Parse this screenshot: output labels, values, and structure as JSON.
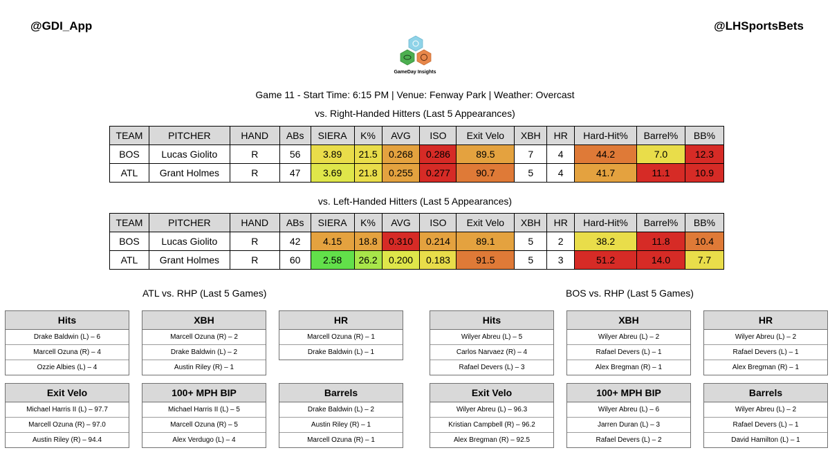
{
  "header": {
    "left_handle": "@GDI_App",
    "right_handle": "@LHSportsBets"
  },
  "logo": {
    "caption": "GameDay Insights",
    "colors": {
      "top": "#8fd3e8",
      "left": "#4caf50",
      "right": "#e8874a"
    }
  },
  "game_info": "Game 11 - Start Time: 6:15 PM | Venue: Fenway Park | Weather: Overcast",
  "columns": [
    "TEAM",
    "PITCHER",
    "HAND",
    "ABs",
    "SIERA",
    "K%",
    "AVG",
    "ISO",
    "Exit Velo",
    "XBH",
    "HR",
    "Hard-Hit%",
    "Barrel%",
    "BB%"
  ],
  "rhh": {
    "title": "vs. Right-Handed Hitters (Last 5 Appearances)",
    "rows": [
      {
        "cells": [
          "BOS",
          "Lucas Giolito",
          "R",
          "56",
          "3.89",
          "21.5",
          "0.268",
          "0.286",
          "89.5",
          "7",
          "4",
          "44.2",
          "7.0",
          "12.3"
        ],
        "colors": [
          "",
          "",
          "",
          "",
          "#e9dd4a",
          "#e9dd4a",
          "#e4a23f",
          "#d62b26",
          "#e4a23f",
          "",
          "",
          "#df7a37",
          "#e9dd4a",
          "#d62b26"
        ]
      },
      {
        "cells": [
          "ATL",
          "Grant Holmes",
          "R",
          "47",
          "3.69",
          "21.8",
          "0.255",
          "0.277",
          "90.7",
          "5",
          "4",
          "41.7",
          "11.1",
          "10.9"
        ],
        "colors": [
          "",
          "",
          "",
          "",
          "#dfe64a",
          "#e9dd4a",
          "#e4a23f",
          "#d62b26",
          "#df7a37",
          "",
          "",
          "#e4a23f",
          "#d62b26",
          "#d62b26"
        ]
      }
    ]
  },
  "lhh": {
    "title": "vs. Left-Handed Hitters (Last 5 Appearances)",
    "rows": [
      {
        "cells": [
          "BOS",
          "Lucas Giolito",
          "R",
          "42",
          "4.15",
          "18.8",
          "0.310",
          "0.214",
          "89.1",
          "5",
          "2",
          "38.2",
          "11.8",
          "10.4"
        ],
        "colors": [
          "",
          "",
          "",
          "",
          "#e4a23f",
          "#e4a23f",
          "#d62b26",
          "#e4a23f",
          "#e4a23f",
          "",
          "",
          "#e9dd4a",
          "#d62b26",
          "#df7a37"
        ]
      },
      {
        "cells": [
          "ATL",
          "Grant Holmes",
          "R",
          "60",
          "2.58",
          "26.2",
          "0.200",
          "0.183",
          "91.5",
          "5",
          "3",
          "51.2",
          "14.0",
          "7.7"
        ],
        "colors": [
          "",
          "",
          "",
          "",
          "#62e04a",
          "#a8e64a",
          "#dfe64a",
          "#e9dd4a",
          "#df7a37",
          "",
          "",
          "#d62b26",
          "#d62b26",
          "#e9dd4a"
        ]
      }
    ]
  },
  "atl": {
    "title": "ATL vs. RHP (Last 5 Games)",
    "boxes": [
      {
        "title": "Hits",
        "rows": [
          "Drake Baldwin (L) – 6",
          "Marcell Ozuna (R) – 4",
          "Ozzie Albies (L) – 4"
        ]
      },
      {
        "title": "XBH",
        "rows": [
          "Marcell Ozuna (R) – 2",
          "Drake Baldwin (L) – 2",
          "Austin Riley (R) – 1"
        ]
      },
      {
        "title": "HR",
        "rows": [
          "Marcell Ozuna (R) – 1",
          "Drake Baldwin (L) – 1"
        ]
      },
      {
        "title": "Exit Velo",
        "rows": [
          "Michael Harris II (L) – 97.7",
          "Marcell Ozuna (R) – 97.0",
          "Austin Riley (R) – 94.4"
        ]
      },
      {
        "title": "100+ MPH BIP",
        "rows": [
          "Michael Harris II (L) – 5",
          "Marcell Ozuna (R) – 5",
          "Alex Verdugo (L) – 4"
        ]
      },
      {
        "title": "Barrels",
        "rows": [
          "Drake Baldwin (L) – 2",
          "Austin Riley (R) – 1",
          "Marcell Ozuna (R) – 1"
        ]
      }
    ]
  },
  "bos": {
    "title": "BOS vs. RHP (Last 5 Games)",
    "boxes": [
      {
        "title": "Hits",
        "rows": [
          "Wilyer Abreu (L) – 5",
          "Carlos Narvaez (R) – 4",
          "Rafael Devers (L) – 3"
        ]
      },
      {
        "title": "XBH",
        "rows": [
          "Wilyer Abreu (L) – 2",
          "Rafael Devers (L) – 1",
          "Alex Bregman (R) – 1"
        ]
      },
      {
        "title": "HR",
        "rows": [
          "Wilyer Abreu (L) – 2",
          "Rafael Devers (L) – 1",
          "Alex Bregman (R) – 1"
        ]
      },
      {
        "title": "Exit Velo",
        "rows": [
          "Wilyer Abreu (L) – 96.3",
          "Kristian Campbell (R) – 96.2",
          "Alex Bregman (R) – 92.5"
        ]
      },
      {
        "title": "100+ MPH BIP",
        "rows": [
          "Wilyer Abreu (L) – 6",
          "Jarren Duran (L) – 3",
          "Rafael Devers (L) – 2"
        ]
      },
      {
        "title": "Barrels",
        "rows": [
          "Wilyer Abreu (L) – 2",
          "Rafael Devers (L) – 1",
          "David Hamilton (L) – 1"
        ]
      }
    ]
  }
}
